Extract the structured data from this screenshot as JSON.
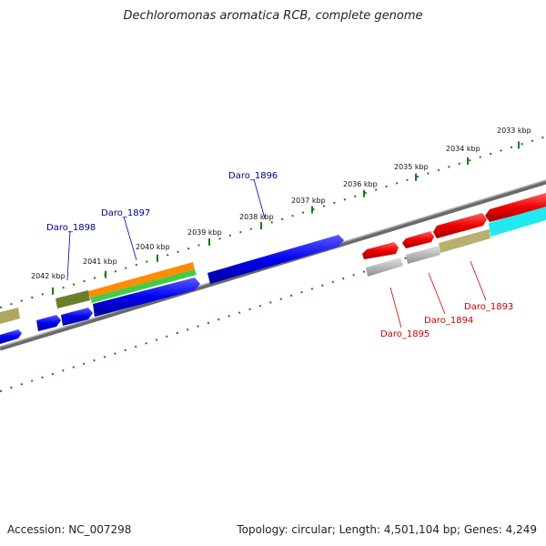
{
  "title": "Dechloromonas aromatica RCB, complete genome",
  "accession_text": "Accession: NC_007298",
  "summary_text": "Topology: circular; Length: 4,501,104 bp; Genes: 4,249",
  "ticks": [
    "2033 kbp",
    "2034 kbp",
    "2035 kbp",
    "2036 kbp",
    "2037 kbp",
    "2038 kbp",
    "2039 kbp",
    "2040 kbp",
    "2041 kbp",
    "2042 kbp"
  ],
  "gene_labels_forward": [
    "Daro_1896",
    "Daro_1897",
    "Daro_1898"
  ],
  "gene_labels_reverse": [
    "Daro_1893",
    "Daro_1894",
    "Daro_1895"
  ],
  "colors": {
    "forward_label": "#00008b",
    "reverse_label": "#cc0000",
    "tick_mark": "#1a7a1a",
    "backbone": "#808080"
  }
}
